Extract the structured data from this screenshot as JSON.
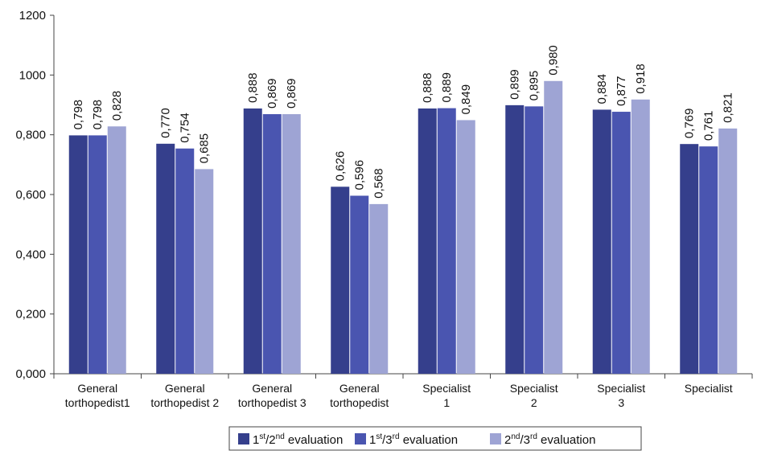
{
  "chart_data": {
    "type": "bar",
    "title": "",
    "xlabel": "",
    "ylabel": "",
    "ylim": [
      0,
      1.2
    ],
    "grid": false,
    "legend_position": "bottom-right",
    "y_ticks": [
      {
        "value": 0.0,
        "label": "0,000"
      },
      {
        "value": 0.2,
        "label": "0,200"
      },
      {
        "value": 0.4,
        "label": "0,400"
      },
      {
        "value": 0.6,
        "label": "0,600"
      },
      {
        "value": 0.8,
        "label": "0,800"
      },
      {
        "value": 1.0,
        "label": "1000"
      },
      {
        "value": 1.2,
        "label": "1200"
      }
    ],
    "categories": [
      [
        "General",
        "torthopedist1"
      ],
      [
        "General",
        "torthopedist 2"
      ],
      [
        "General",
        "torthopedist 3"
      ],
      [
        "General",
        "torthopedist"
      ],
      [
        "Specialist",
        "1"
      ],
      [
        "Specialist",
        "2"
      ],
      [
        "Specialist",
        "3"
      ],
      [
        "Specialist"
      ]
    ],
    "series": [
      {
        "name": "1st/2nd evaluation",
        "legend_parts": [
          "1",
          "st",
          "/2",
          "nd",
          " evaluation"
        ],
        "color": "#353f8c",
        "values": [
          0.798,
          0.77,
          0.888,
          0.626,
          0.888,
          0.899,
          0.884,
          0.769
        ],
        "labels": [
          "0,798",
          "0,770",
          "0,888",
          "0,626",
          "0,888",
          "0,899",
          "0,884",
          "0,769"
        ]
      },
      {
        "name": "1st/3rd evaluation",
        "legend_parts": [
          "1",
          "st",
          "/3",
          "rd",
          " evaluation"
        ],
        "color": "#4a55b0",
        "values": [
          0.798,
          0.754,
          0.869,
          0.596,
          0.889,
          0.895,
          0.877,
          0.761
        ],
        "labels": [
          "0,798",
          "0,754",
          "0,869",
          "0,596",
          "0,889",
          "0,895",
          "0,877",
          "0,761"
        ]
      },
      {
        "name": "2nd/3rd evaluation",
        "legend_parts": [
          "2",
          "nd",
          "/3",
          "rd",
          " evaluation"
        ],
        "color": "#9ea4d4",
        "values": [
          0.828,
          0.685,
          0.869,
          0.568,
          0.849,
          0.98,
          0.918,
          0.821
        ],
        "labels": [
          "0,828",
          "0,685",
          "0,869",
          "0,568",
          "0,849",
          "0,980",
          "0,918",
          "0,821"
        ]
      }
    ]
  }
}
